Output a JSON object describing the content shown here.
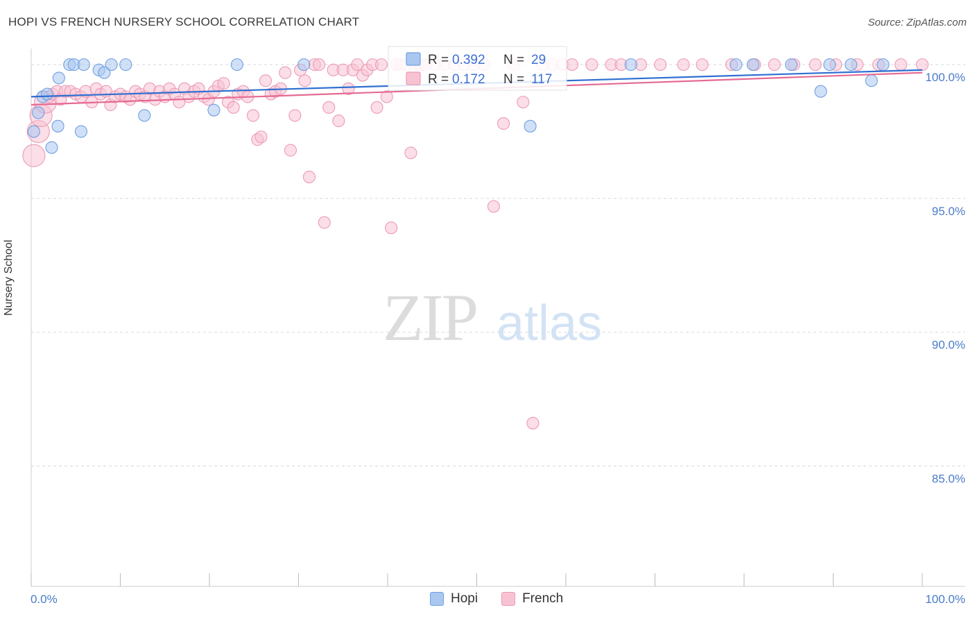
{
  "title": "HOPI VS FRENCH NURSERY SCHOOL CORRELATION CHART",
  "source": "Source: ZipAtlas.com",
  "watermark": {
    "zip": "ZIP",
    "atlas": "atlas"
  },
  "chart_data": {
    "type": "scatter",
    "title": "HOPI VS FRENCH NURSERY SCHOOL CORRELATION CHART",
    "xlabel": "",
    "ylabel": "Nursery School",
    "xlim": [
      0,
      100
    ],
    "ylim": [
      80.5,
      100.6
    ],
    "x_tick_labels": [
      "0.0%",
      "100.0%"
    ],
    "y_ticks": [
      100,
      95,
      90,
      85
    ],
    "y_tick_labels": [
      "100.0%",
      "95.0%",
      "90.0%",
      "85.0%"
    ],
    "grid": true,
    "legend": {
      "placement": "top-center",
      "rows": [
        {
          "series": "Hopi",
          "r_label": "R =",
          "r_value": "0.392",
          "n_label": "N =",
          "n_value": "29"
        },
        {
          "series": "French",
          "r_label": "R =",
          "r_value": "0.172",
          "n_label": "N =",
          "n_value": "117"
        }
      ]
    },
    "series": [
      {
        "name": "Hopi",
        "color": "#6f9fe0",
        "fill": "#aac7f0",
        "line_color": "#2e6fd1",
        "trend": {
          "x": [
            0,
            100
          ],
          "y": [
            98.8,
            99.8
          ]
        },
        "points": [
          {
            "x": 0.3,
            "y": 97.5
          },
          {
            "x": 0.8,
            "y": 98.2
          },
          {
            "x": 1.3,
            "y": 98.8
          },
          {
            "x": 1.8,
            "y": 98.9
          },
          {
            "x": 2.3,
            "y": 96.9
          },
          {
            "x": 3.0,
            "y": 97.7
          },
          {
            "x": 3.1,
            "y": 99.5
          },
          {
            "x": 4.3,
            "y": 100.0
          },
          {
            "x": 4.8,
            "y": 100.0
          },
          {
            "x": 5.6,
            "y": 97.5
          },
          {
            "x": 5.9,
            "y": 100.0
          },
          {
            "x": 7.6,
            "y": 99.8
          },
          {
            "x": 8.2,
            "y": 99.7
          },
          {
            "x": 9.0,
            "y": 100.0
          },
          {
            "x": 10.6,
            "y": 100.0
          },
          {
            "x": 12.7,
            "y": 98.1
          },
          {
            "x": 20.5,
            "y": 98.3
          },
          {
            "x": 23.1,
            "y": 100.0
          },
          {
            "x": 30.6,
            "y": 100.0
          },
          {
            "x": 56.0,
            "y": 97.7
          },
          {
            "x": 67.3,
            "y": 100.0
          },
          {
            "x": 79.1,
            "y": 100.0
          },
          {
            "x": 81.0,
            "y": 100.0
          },
          {
            "x": 85.3,
            "y": 100.0
          },
          {
            "x": 88.6,
            "y": 99.0
          },
          {
            "x": 89.6,
            "y": 100.0
          },
          {
            "x": 92.0,
            "y": 100.0
          },
          {
            "x": 94.3,
            "y": 99.4
          },
          {
            "x": 95.6,
            "y": 100.0
          }
        ]
      },
      {
        "name": "French",
        "color": "#ec9ab4",
        "fill": "#f7c3d3",
        "line_color": "#e56a92",
        "trend": {
          "x": [
            0,
            100
          ],
          "y": [
            98.5,
            99.7
          ]
        },
        "points": [
          {
            "x": 0.3,
            "y": 96.6,
            "big": true
          },
          {
            "x": 0.8,
            "y": 97.5,
            "big": true
          },
          {
            "x": 1.1,
            "y": 98.1,
            "big": true
          },
          {
            "x": 1.6,
            "y": 98.6,
            "big": true
          },
          {
            "x": 2.0,
            "y": 98.8
          },
          {
            "x": 2.4,
            "y": 98.9
          },
          {
            "x": 2.9,
            "y": 99.0
          },
          {
            "x": 3.3,
            "y": 98.7
          },
          {
            "x": 3.8,
            "y": 99.0
          },
          {
            "x": 4.4,
            "y": 99.0
          },
          {
            "x": 5.0,
            "y": 98.9
          },
          {
            "x": 5.6,
            "y": 98.8
          },
          {
            "x": 6.1,
            "y": 99.0
          },
          {
            "x": 6.8,
            "y": 98.6
          },
          {
            "x": 7.3,
            "y": 99.1
          },
          {
            "x": 7.8,
            "y": 98.9
          },
          {
            "x": 8.4,
            "y": 99.0
          },
          {
            "x": 8.9,
            "y": 98.5
          },
          {
            "x": 9.4,
            "y": 98.8
          },
          {
            "x": 10.0,
            "y": 98.9
          },
          {
            "x": 10.6,
            "y": 98.8
          },
          {
            "x": 11.1,
            "y": 98.7
          },
          {
            "x": 11.7,
            "y": 99.0
          },
          {
            "x": 12.2,
            "y": 98.9
          },
          {
            "x": 12.8,
            "y": 98.8
          },
          {
            "x": 13.3,
            "y": 99.1
          },
          {
            "x": 13.9,
            "y": 98.7
          },
          {
            "x": 14.4,
            "y": 99.0
          },
          {
            "x": 15.0,
            "y": 98.8
          },
          {
            "x": 15.5,
            "y": 99.1
          },
          {
            "x": 16.1,
            "y": 98.9
          },
          {
            "x": 16.6,
            "y": 98.6
          },
          {
            "x": 17.2,
            "y": 99.1
          },
          {
            "x": 17.7,
            "y": 98.8
          },
          {
            "x": 18.3,
            "y": 99.0
          },
          {
            "x": 18.8,
            "y": 99.1
          },
          {
            "x": 19.4,
            "y": 98.8
          },
          {
            "x": 19.9,
            "y": 98.7
          },
          {
            "x": 20.5,
            "y": 99.0
          },
          {
            "x": 21.0,
            "y": 99.2
          },
          {
            "x": 21.6,
            "y": 99.3
          },
          {
            "x": 22.1,
            "y": 98.6
          },
          {
            "x": 22.7,
            "y": 98.4
          },
          {
            "x": 23.2,
            "y": 98.9
          },
          {
            "x": 23.8,
            "y": 99.0
          },
          {
            "x": 24.3,
            "y": 98.8
          },
          {
            "x": 24.9,
            "y": 98.1
          },
          {
            "x": 25.4,
            "y": 97.2
          },
          {
            "x": 25.8,
            "y": 97.3
          },
          {
            "x": 26.3,
            "y": 99.4
          },
          {
            "x": 26.9,
            "y": 98.9
          },
          {
            "x": 27.4,
            "y": 99.0
          },
          {
            "x": 28.0,
            "y": 99.1
          },
          {
            "x": 28.5,
            "y": 99.7
          },
          {
            "x": 29.1,
            "y": 96.8
          },
          {
            "x": 29.6,
            "y": 98.1
          },
          {
            "x": 30.2,
            "y": 99.8
          },
          {
            "x": 30.7,
            "y": 99.4
          },
          {
            "x": 31.2,
            "y": 95.8
          },
          {
            "x": 31.8,
            "y": 100.0
          },
          {
            "x": 32.3,
            "y": 100.0
          },
          {
            "x": 32.9,
            "y": 94.1
          },
          {
            "x": 33.4,
            "y": 98.4
          },
          {
            "x": 33.9,
            "y": 99.8
          },
          {
            "x": 34.5,
            "y": 97.9
          },
          {
            "x": 35.0,
            "y": 99.8
          },
          {
            "x": 35.6,
            "y": 99.1
          },
          {
            "x": 36.1,
            "y": 99.8
          },
          {
            "x": 36.6,
            "y": 100.0
          },
          {
            "x": 37.2,
            "y": 99.6
          },
          {
            "x": 37.7,
            "y": 99.8
          },
          {
            "x": 38.3,
            "y": 100.0
          },
          {
            "x": 38.8,
            "y": 98.4
          },
          {
            "x": 39.3,
            "y": 100.0
          },
          {
            "x": 39.9,
            "y": 98.8
          },
          {
            "x": 40.4,
            "y": 93.9
          },
          {
            "x": 41.0,
            "y": 100.0
          },
          {
            "x": 41.5,
            "y": 100.0
          },
          {
            "x": 42.0,
            "y": 100.0
          },
          {
            "x": 42.6,
            "y": 96.7
          },
          {
            "x": 43.1,
            "y": 100.0
          },
          {
            "x": 43.7,
            "y": 100.0
          },
          {
            "x": 44.2,
            "y": 100.0
          },
          {
            "x": 45.3,
            "y": 100.0
          },
          {
            "x": 46.4,
            "y": 100.0
          },
          {
            "x": 47.5,
            "y": 100.0
          },
          {
            "x": 48.6,
            "y": 100.0
          },
          {
            "x": 49.7,
            "y": 100.0
          },
          {
            "x": 50.8,
            "y": 100.0
          },
          {
            "x": 51.9,
            "y": 94.7
          },
          {
            "x": 53.0,
            "y": 97.8
          },
          {
            "x": 54.1,
            "y": 100.0
          },
          {
            "x": 55.2,
            "y": 98.6
          },
          {
            "x": 56.3,
            "y": 86.6
          },
          {
            "x": 57.4,
            "y": 100.0
          },
          {
            "x": 58.5,
            "y": 100.0
          },
          {
            "x": 59.6,
            "y": 100.0
          },
          {
            "x": 60.7,
            "y": 100.0
          },
          {
            "x": 62.9,
            "y": 100.0
          },
          {
            "x": 65.1,
            "y": 100.0
          },
          {
            "x": 66.2,
            "y": 100.0
          },
          {
            "x": 68.4,
            "y": 100.0
          },
          {
            "x": 70.6,
            "y": 100.0
          },
          {
            "x": 73.2,
            "y": 100.0
          },
          {
            "x": 75.3,
            "y": 100.0
          },
          {
            "x": 78.6,
            "y": 100.0
          },
          {
            "x": 81.2,
            "y": 100.0
          },
          {
            "x": 83.4,
            "y": 100.0
          },
          {
            "x": 85.6,
            "y": 100.0
          },
          {
            "x": 88.0,
            "y": 100.0
          },
          {
            "x": 90.3,
            "y": 100.0
          },
          {
            "x": 92.7,
            "y": 100.0
          },
          {
            "x": 95.1,
            "y": 100.0
          },
          {
            "x": 97.6,
            "y": 100.0
          },
          {
            "x": 100.0,
            "y": 100.0
          }
        ]
      }
    ]
  },
  "bottom_legend": [
    {
      "label": "Hopi",
      "color": "#aac7f0",
      "border": "#6f9fe0"
    },
    {
      "label": "French",
      "color": "#f7c3d3",
      "border": "#ec9ab4"
    }
  ]
}
